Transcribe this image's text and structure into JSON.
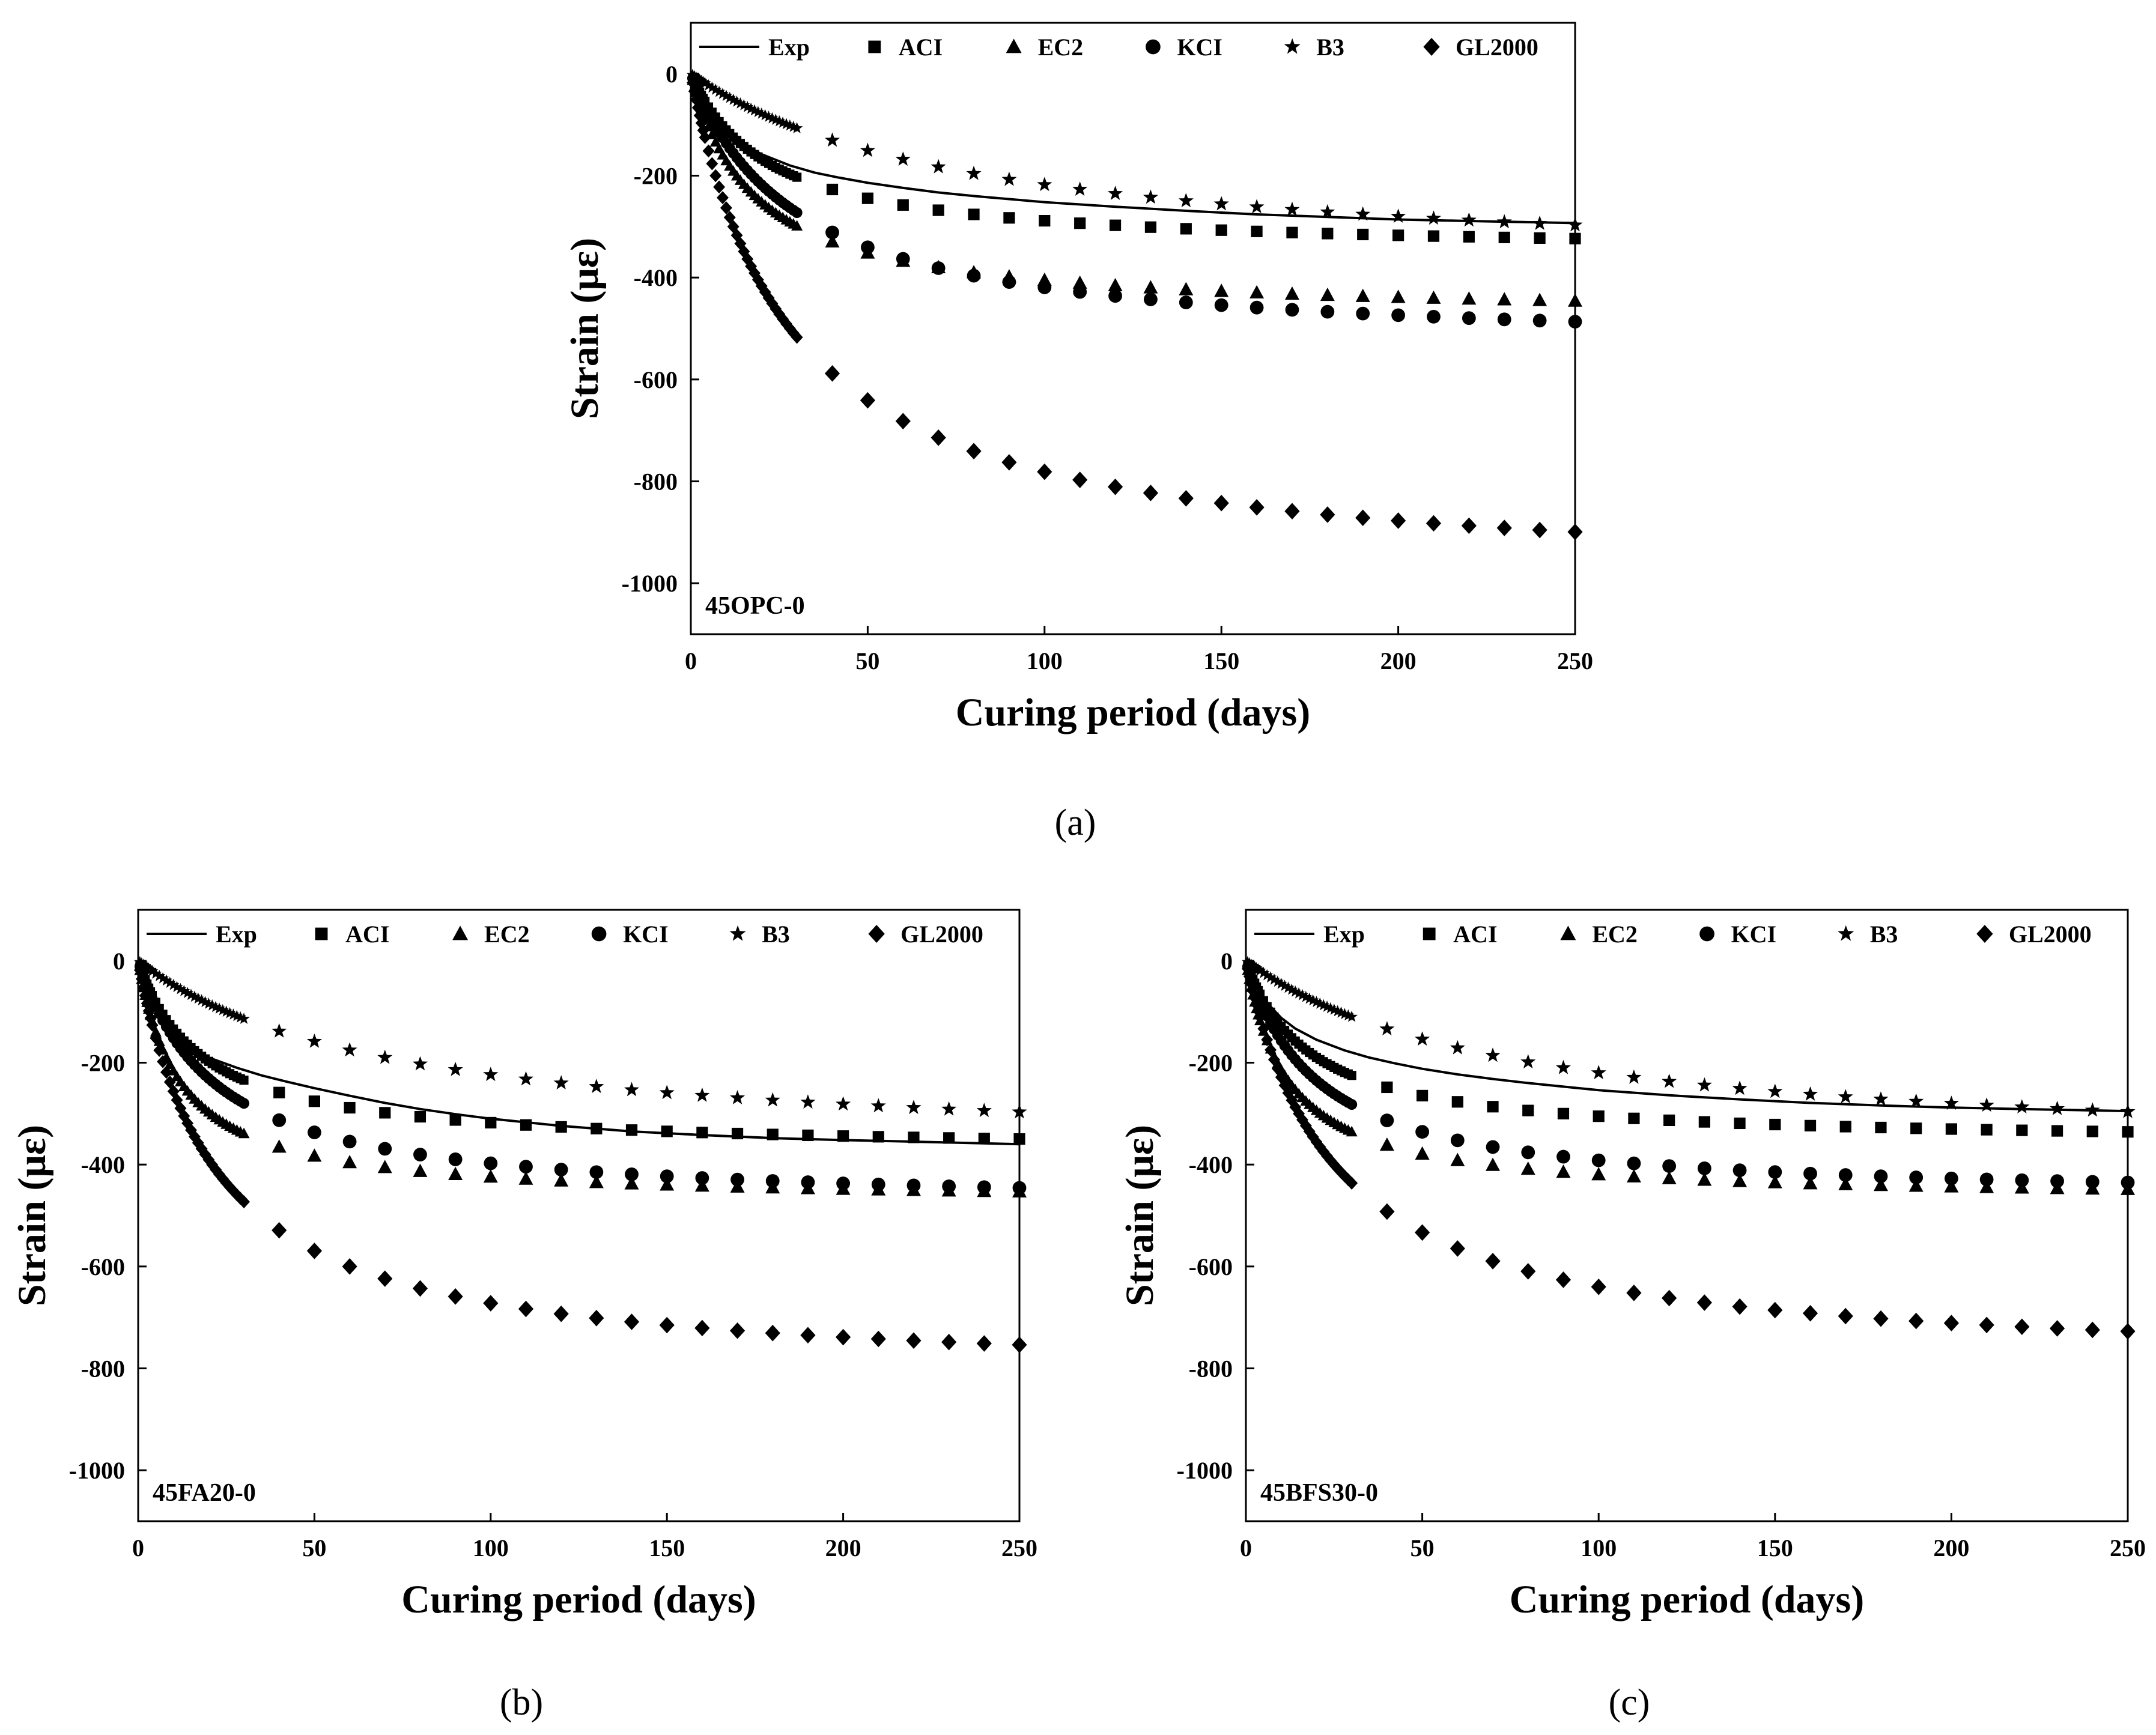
{
  "figure": {
    "legend": [
      {
        "key": "exp",
        "label": "Exp",
        "symbol": "line"
      },
      {
        "key": "aci",
        "label": "ACI",
        "symbol": "square"
      },
      {
        "key": "ec2",
        "label": "EC2",
        "symbol": "triangle"
      },
      {
        "key": "kci",
        "label": "KCI",
        "symbol": "circle"
      },
      {
        "key": "b3",
        "label": "B3",
        "symbol": "star"
      },
      {
        "key": "gl2000",
        "label": "GL2000",
        "symbol": "diamond"
      }
    ],
    "marker_color": "#000000"
  },
  "chart_data": [
    {
      "type": "line",
      "caption": "(a)",
      "specimen": "45OPC-0",
      "xlabel": "Curing period (days)",
      "ylabel": "Strain (με)",
      "xlim": [
        0,
        250
      ],
      "ylim": [
        -1100,
        100
      ],
      "xticks": [
        0,
        50,
        100,
        150,
        200,
        250
      ],
      "yticks": [
        0,
        -200,
        -400,
        -600,
        -800,
        -1000
      ],
      "grid": false,
      "legend_position": "top",
      "exp_curve": {
        "x": [
          0,
          1,
          2,
          3,
          5,
          7,
          10,
          14,
          20,
          28,
          35,
          42,
          50,
          60,
          70,
          80,
          90,
          100,
          120,
          140,
          160,
          180,
          200,
          220,
          250
        ],
        "y": [
          0,
          -20,
          -35,
          -50,
          -72,
          -90,
          -112,
          -135,
          -158,
          -180,
          -194,
          -204,
          -214,
          -224,
          -233,
          -240,
          -246,
          -252,
          -261,
          -269,
          -276,
          -281,
          -286,
          -289,
          -293
        ]
      },
      "series_params": {
        "aci": {
          "final": -352,
          "h": 22
        },
        "ec2": {
          "final": -478,
          "h": 18
        },
        "kci": {
          "final": -545,
          "h": 30
        },
        "b3": {
          "final": -392,
          "h": 80
        },
        "gl2000": {
          "final": -1000,
          "h": 28
        }
      }
    },
    {
      "type": "line",
      "caption": "(b)",
      "specimen": "45FA20-0",
      "xlabel": "Curing period (days)",
      "ylabel": "Strain (με)",
      "xlim": [
        0,
        250
      ],
      "ylim": [
        -1100,
        100
      ],
      "xticks": [
        0,
        50,
        100,
        150,
        200,
        250
      ],
      "yticks": [
        0,
        -200,
        -400,
        -600,
        -800,
        -1000
      ],
      "grid": false,
      "legend_position": "top",
      "exp_curve": {
        "x": [
          0,
          1,
          2,
          3,
          5,
          7,
          10,
          14,
          20,
          28,
          35,
          42,
          50,
          60,
          70,
          80,
          90,
          100,
          120,
          140,
          160,
          180,
          200,
          220,
          250
        ],
        "y": [
          0,
          -25,
          -45,
          -62,
          -90,
          -112,
          -138,
          -165,
          -190,
          -210,
          -225,
          -237,
          -250,
          -265,
          -279,
          -291,
          -301,
          -310,
          -324,
          -335,
          -342,
          -348,
          -352,
          -355,
          -360
        ]
      },
      "series_params": {
        "aci": {
          "final": -375,
          "h": 18
        },
        "ec2": {
          "final": -475,
          "h": 12
        },
        "kci": {
          "final": -485,
          "h": 22
        },
        "b3": {
          "final": -380,
          "h": 70
        },
        "gl2000": {
          "final": -820,
          "h": 22
        }
      }
    },
    {
      "type": "line",
      "caption": "(c)",
      "specimen": "45BFS30-0",
      "xlabel": "Curing period (days)",
      "ylabel": "Strain (με)",
      "xlim": [
        0,
        250
      ],
      "ylim": [
        -1100,
        100
      ],
      "xticks": [
        0,
        50,
        100,
        150,
        200,
        250
      ],
      "yticks": [
        0,
        -200,
        -400,
        -600,
        -800,
        -1000
      ],
      "grid": false,
      "legend_position": "top",
      "exp_curve": {
        "x": [
          0,
          1,
          2,
          3,
          5,
          7,
          10,
          14,
          20,
          28,
          35,
          42,
          50,
          60,
          70,
          80,
          90,
          100,
          120,
          140,
          160,
          180,
          200,
          220,
          250
        ],
        "y": [
          0,
          -20,
          -35,
          -50,
          -72,
          -90,
          -112,
          -133,
          -155,
          -176,
          -190,
          -201,
          -212,
          -223,
          -232,
          -240,
          -247,
          -254,
          -264,
          -272,
          -279,
          -284,
          -288,
          -291,
          -295
        ]
      },
      "series_params": {
        "aci": {
          "final": -360,
          "h": 18
        },
        "ec2": {
          "final": -470,
          "h": 12
        },
        "kci": {
          "final": -470,
          "h": 20
        },
        "b3": {
          "final": -385,
          "h": 75
        },
        "gl2000": {
          "final": -800,
          "h": 25
        }
      }
    }
  ]
}
